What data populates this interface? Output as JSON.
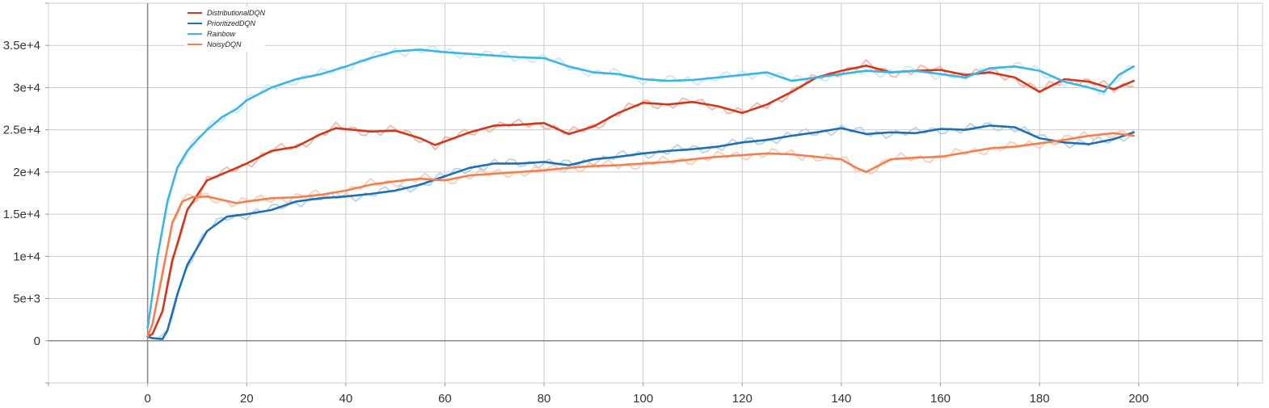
{
  "chart_data": {
    "type": "line",
    "title": "",
    "xlabel": "",
    "ylabel": "",
    "xlim": [
      -20,
      225
    ],
    "ylim": [
      -5000,
      40000
    ],
    "x_ticks": [
      0,
      20,
      40,
      60,
      80,
      100,
      120,
      140,
      160,
      180,
      200
    ],
    "x_tick_labels": [
      "0",
      "20",
      "40",
      "60",
      "80",
      "100",
      "120",
      "140",
      "160",
      "180",
      "200"
    ],
    "y_ticks": [
      0,
      5000,
      10000,
      15000,
      20000,
      25000,
      30000,
      35000
    ],
    "y_tick_labels": [
      "0",
      "5e+3",
      "1e+4",
      "1.5e+4",
      "2e+4",
      "2.5e+4",
      "3e+4",
      "3.5e+4"
    ],
    "grid": true,
    "legend_position": "top-left",
    "series": [
      {
        "name": "DistributionalDQN",
        "color": "#d0381c",
        "raw_color": "#f2aa98",
        "x": [
          0,
          1,
          3,
          5,
          8,
          12,
          16,
          20,
          25,
          30,
          35,
          38,
          45,
          50,
          55,
          58,
          65,
          70,
          75,
          80,
          85,
          90,
          95,
          100,
          105,
          110,
          115,
          120,
          125,
          130,
          135,
          140,
          145,
          150,
          155,
          160,
          165,
          170,
          175,
          180,
          185,
          190,
          195,
          199
        ],
        "values": [
          500,
          800,
          3500,
          9500,
          15500,
          19000,
          20000,
          21000,
          22500,
          23000,
          24500,
          25200,
          24800,
          24900,
          24000,
          23200,
          24700,
          25500,
          25600,
          25800,
          24500,
          25400,
          27000,
          28200,
          28000,
          28300,
          27800,
          27000,
          28000,
          29500,
          31200,
          32000,
          32600,
          31800,
          32000,
          32100,
          31500,
          31800,
          31200,
          29500,
          31000,
          30700,
          29800,
          30800
        ]
      },
      {
        "name": "PrioritizedDQN",
        "color": "#1f6fb4",
        "raw_color": "#a9cbe8",
        "x": [
          0,
          1,
          3,
          4,
          6,
          8,
          12,
          16,
          20,
          25,
          30,
          35,
          40,
          45,
          50,
          55,
          60,
          65,
          70,
          75,
          80,
          85,
          90,
          95,
          100,
          105,
          110,
          115,
          120,
          125,
          130,
          135,
          140,
          145,
          150,
          155,
          160,
          165,
          170,
          175,
          180,
          185,
          190,
          195,
          199
        ],
        "values": [
          500,
          300,
          200,
          1200,
          5500,
          9000,
          13000,
          14700,
          15000,
          15500,
          16500,
          16900,
          17100,
          17400,
          17800,
          18500,
          19500,
          20500,
          21000,
          21000,
          21200,
          20800,
          21500,
          21800,
          22200,
          22500,
          22700,
          23000,
          23500,
          23800,
          24300,
          24700,
          25200,
          24500,
          24700,
          24600,
          25100,
          25000,
          25500,
          25300,
          24000,
          23500,
          23300,
          23900,
          24700
        ]
      },
      {
        "name": "Rainbow",
        "color": "#3cb4e6",
        "raw_color": "#bfe6f7",
        "x": [
          0,
          1,
          2,
          4,
          6,
          8,
          10,
          12,
          15,
          18,
          20,
          25,
          30,
          35,
          40,
          45,
          50,
          55,
          60,
          65,
          70,
          75,
          80,
          85,
          90,
          95,
          100,
          105,
          110,
          115,
          120,
          125,
          130,
          135,
          140,
          145,
          150,
          155,
          160,
          165,
          170,
          175,
          180,
          185,
          190,
          193,
          196,
          199
        ],
        "values": [
          1500,
          5500,
          10000,
          16500,
          20500,
          22500,
          23800,
          25000,
          26500,
          27500,
          28500,
          30000,
          31000,
          31600,
          32500,
          33500,
          34300,
          34500,
          34200,
          34000,
          33800,
          33600,
          33500,
          32500,
          31800,
          31600,
          31000,
          30800,
          30900,
          31200,
          31500,
          31800,
          30800,
          31200,
          31600,
          32000,
          31800,
          32000,
          31600,
          31200,
          32300,
          32500,
          32000,
          30700,
          30000,
          29500,
          31500,
          32500
        ]
      },
      {
        "name": "NoisyDQN",
        "color": "#f47f4e",
        "raw_color": "#fbc4aa",
        "x": [
          0,
          1,
          3,
          5,
          7,
          9,
          12,
          15,
          18,
          20,
          25,
          30,
          35,
          40,
          45,
          50,
          55,
          60,
          65,
          70,
          75,
          80,
          85,
          90,
          95,
          100,
          105,
          110,
          115,
          120,
          125,
          130,
          135,
          140,
          143,
          145,
          150,
          155,
          160,
          165,
          170,
          175,
          180,
          185,
          190,
          195,
          199
        ],
        "values": [
          500,
          2000,
          8000,
          14000,
          16500,
          17000,
          17100,
          16700,
          16300,
          16500,
          16900,
          17000,
          17300,
          17800,
          18500,
          18900,
          19200,
          19000,
          19600,
          19800,
          20000,
          20200,
          20500,
          20700,
          20800,
          21000,
          21200,
          21500,
          21800,
          22000,
          22200,
          22100,
          21800,
          21500,
          20500,
          20000,
          21500,
          21700,
          21800,
          22300,
          22800,
          23000,
          23400,
          23800,
          24300,
          24600,
          24300
        ]
      }
    ]
  }
}
